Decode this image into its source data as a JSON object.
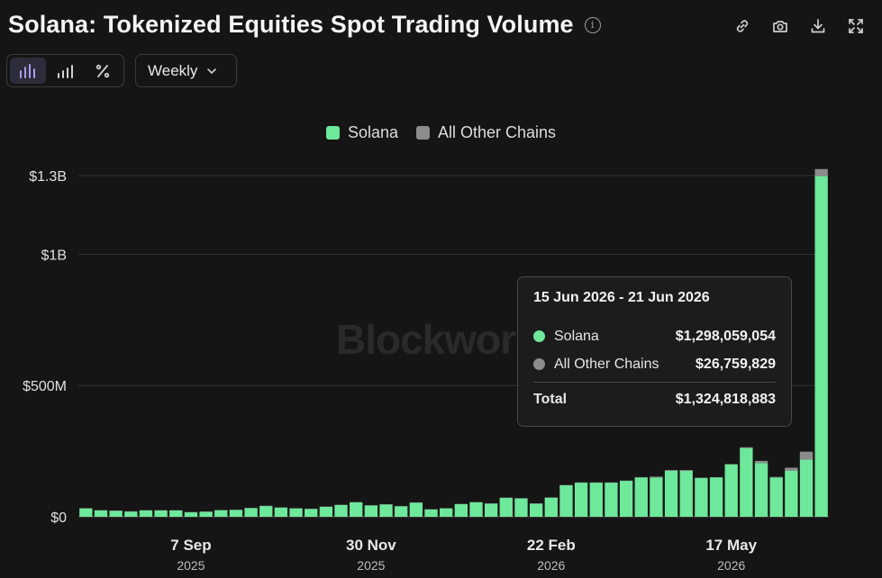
{
  "header": {
    "title": "Solana: Tokenized Equities Spot Trading Volume",
    "info_icon": "info-icon",
    "tools": [
      "link-icon",
      "camera-icon",
      "download-icon",
      "fullscreen-icon"
    ]
  },
  "controls": {
    "chart_types": [
      "bar-chart-icon",
      "stacked-bar-icon",
      "percent-icon"
    ],
    "active_chart_type": "bar-chart-icon",
    "period": "Weekly",
    "period_icon": "chevron-down-icon"
  },
  "watermark": "Blockworks",
  "colors": {
    "solana": "#6ee89b",
    "other": "#8c8c8c",
    "background": "#151515",
    "gridline": "#333333"
  },
  "tooltip": {
    "title": "15 Jun 2026 - 21 Jun 2026",
    "rows": [
      {
        "label": "Solana",
        "value": "$1,298,059,054"
      },
      {
        "label": "All Other Chains",
        "value": "$26,759,829"
      }
    ],
    "total_label": "Total",
    "total_value": "$1,324,818,883"
  },
  "chart_data": {
    "type": "bar",
    "stacked": true,
    "legend": [
      "Solana",
      "All Other Chains"
    ],
    "legend_position": "top-center",
    "y_ticks": [
      "$0",
      "$500M",
      "$1B",
      "$1.3B"
    ],
    "y_tick_values": [
      0,
      500000000,
      1000000000,
      1300000000
    ],
    "ylim": [
      0,
      1300000000
    ],
    "x_tick_labels": [
      {
        "month": "7 Sep",
        "year": "2025",
        "index": 7
      },
      {
        "month": "30 Nov",
        "year": "2025",
        "index": 19
      },
      {
        "month": "22 Feb",
        "year": "2026",
        "index": 31
      },
      {
        "month": "17 May",
        "year": "2026",
        "index": 43
      }
    ],
    "grid": "horizontal",
    "series": [
      {
        "name": "Solana",
        "values": [
          32000000,
          24000000,
          23000000,
          20000000,
          24000000,
          24000000,
          24000000,
          17000000,
          19000000,
          25000000,
          26000000,
          33000000,
          41000000,
          35000000,
          32000000,
          30000000,
          38000000,
          45000000,
          55000000,
          43000000,
          47000000,
          40000000,
          54000000,
          28000000,
          32000000,
          48000000,
          55000000,
          50000000,
          72000000,
          70000000,
          50000000,
          73000000,
          120000000,
          130000000,
          130000000,
          130000000,
          137000000,
          150000000,
          150000000,
          175000000,
          175000000,
          148000000,
          150000000,
          200000000,
          262000000,
          205000000,
          150000000,
          175000000,
          218000000,
          1298059054
        ]
      },
      {
        "name": "All Other Chains",
        "values": [
          1000000,
          1000000,
          1000000,
          1000000,
          1000000,
          1000000,
          1000000,
          1000000,
          1000000,
          1000000,
          1000000,
          1000000,
          1000000,
          1000000,
          1000000,
          1000000,
          1000000,
          1000000,
          1000000,
          1000000,
          1000000,
          1000000,
          1000000,
          1000000,
          1000000,
          1000000,
          1000000,
          1000000,
          1000000,
          1000000,
          1000000,
          1000000,
          1000000,
          1000000,
          1000000,
          1000000,
          1000000,
          1000000,
          3000000,
          3000000,
          3000000,
          1000000,
          1000000,
          1000000,
          3000000,
          8000000,
          2000000,
          12000000,
          30000000,
          26759829
        ]
      }
    ]
  }
}
